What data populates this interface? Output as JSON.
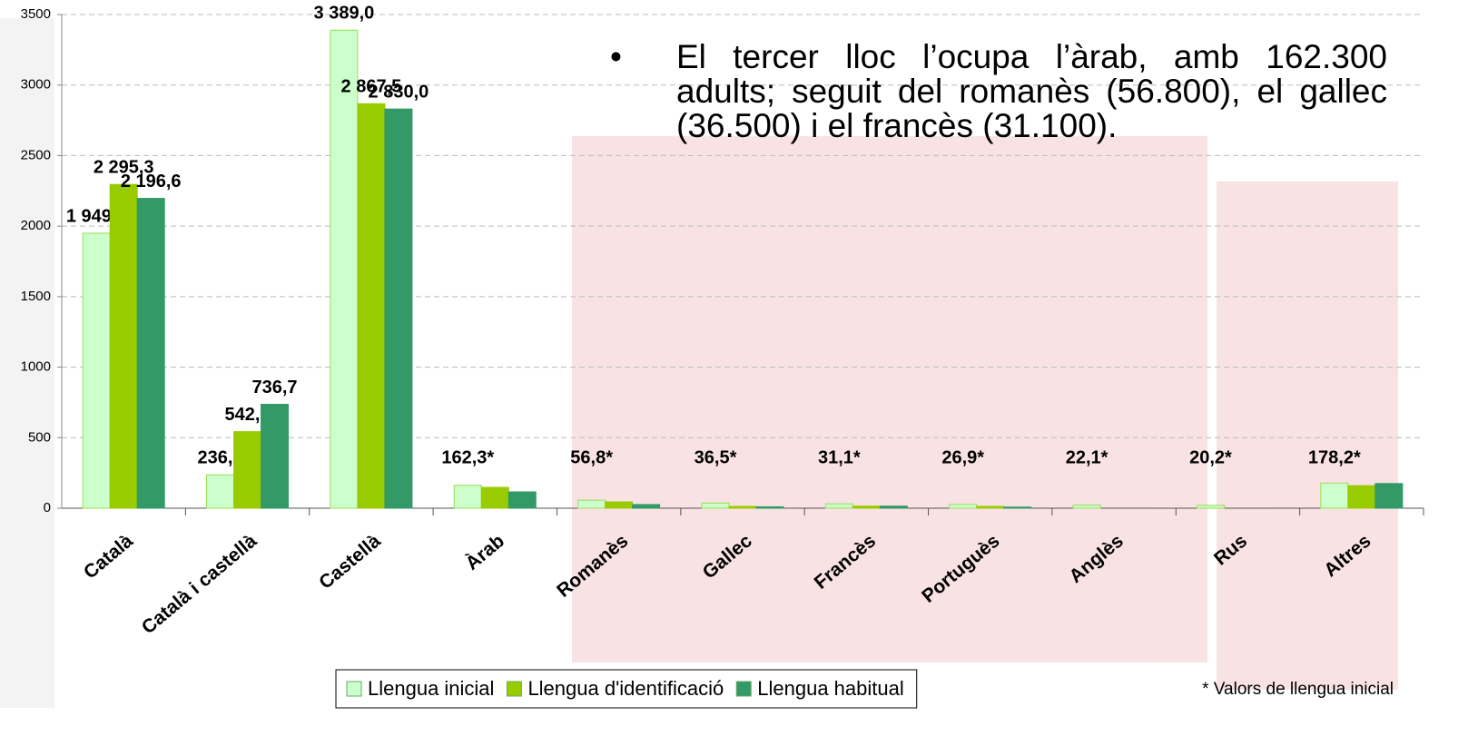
{
  "chart_data": {
    "type": "bar",
    "annotation": "El tercer lloc l’ocupa l’àrab, amb 162.300 adults; seguit del romanès (56.800), el gallec (36.500) i el francès (31.100).",
    "footnote": "* Valors de llengua inicial",
    "categories": [
      "Català",
      "Català i castellà",
      "Castellà",
      "Àrab",
      "Romanès",
      "Gallec",
      "Francès",
      "Portuguès",
      "Anglès",
      "Rus",
      "Altres"
    ],
    "series": [
      {
        "name": "Llengua inicial",
        "color": "#ccffcc",
        "values": [
          1949.5,
          236.5,
          3389.0,
          162.3,
          56.8,
          36.5,
          31.1,
          26.9,
          22.1,
          20.2,
          178.2
        ],
        "value_labels": [
          "1 949,5",
          "236,5",
          "3 389,0",
          "162,3*",
          "56,8*",
          "36,5*",
          "31,1*",
          "26,9*",
          "22,1*",
          "20,2*",
          "178,2*"
        ]
      },
      {
        "name": "Llengua d'identificació",
        "color": "#99cc00",
        "values": [
          2295.3,
          542.8,
          2867.5,
          148,
          45,
          13,
          15,
          13,
          0,
          0,
          160
        ],
        "value_labels": [
          "2 295,3",
          "542,8",
          "2 867,5",
          null,
          null,
          null,
          null,
          null,
          null,
          null,
          null
        ]
      },
      {
        "name": "Llengua habitual",
        "color": "#339966",
        "values": [
          2196.6,
          736.7,
          2830.0,
          116,
          26,
          10,
          15,
          8,
          0,
          0,
          175
        ],
        "value_labels": [
          "2 196,6",
          "736,7",
          "2 830,0",
          null,
          null,
          null,
          null,
          null,
          null,
          null,
          null
        ]
      }
    ],
    "ylim": [
      0,
      3500
    ],
    "yticks": [
      0,
      500,
      1000,
      1500,
      2000,
      2500,
      3000,
      3500
    ],
    "grid": true
  }
}
